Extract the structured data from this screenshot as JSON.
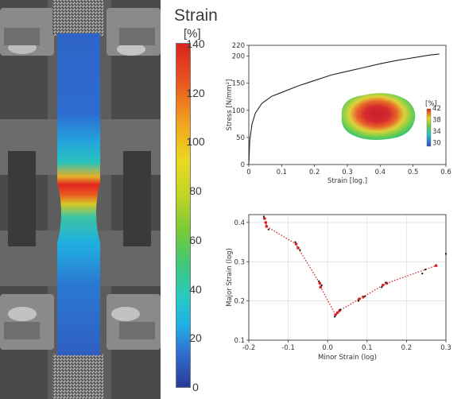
{
  "colorbar": {
    "title": "Strain",
    "unit": "[%]",
    "ticks": [
      "140",
      "120",
      "100",
      "80",
      "60",
      "40",
      "20",
      "0"
    ],
    "min": 0,
    "max": 140
  },
  "chart_data": [
    {
      "type": "line",
      "xlabel": "Strain [log.]",
      "ylabel": "Stress [N/mm²]",
      "xlim": [
        0,
        0.6
      ],
      "ylim": [
        0,
        220
      ],
      "xticks": [
        "0",
        "0.1",
        "0.2",
        "0.3",
        "0.4",
        "0.5",
        "0.6"
      ],
      "yticks": [
        "0",
        "50",
        "100",
        "150",
        "200",
        "220"
      ],
      "grid": false,
      "series": [
        {
          "color": "#222222",
          "x": [
            0,
            0.003,
            0.01,
            0.02,
            0.04,
            0.07,
            0.1,
            0.15,
            0.2,
            0.25,
            0.3,
            0.35,
            0.4,
            0.45,
            0.5,
            0.55,
            0.58
          ],
          "y": [
            0,
            45,
            75,
            95,
            113,
            126,
            133,
            145,
            155,
            165,
            172,
            179,
            186,
            192,
            197,
            202,
            204
          ]
        }
      ],
      "inset": {
        "description_colorbar_unit": "[%]",
        "colorbar_ticks": [
          "42",
          "38",
          "34",
          "30"
        ]
      }
    },
    {
      "type": "scatter",
      "xlabel": "Minor Strain (log)",
      "ylabel": "Major Strain (log)",
      "xlim": [
        -0.2,
        0.3
      ],
      "ylim": [
        0.1,
        0.42
      ],
      "xticks": [
        "-0.2",
        "-0.1",
        "0.0",
        "0.1",
        "0.2",
        "0.3"
      ],
      "yticks": [
        "0.1",
        "0.2",
        "0.3",
        "0.4"
      ],
      "grid": true,
      "series": [
        {
          "color": "#d62020",
          "style": "dotted",
          "x": [
            -0.16,
            -0.157,
            -0.155,
            -0.08,
            -0.075,
            -0.02,
            -0.018,
            0.02,
            0.025,
            0.03,
            0.08,
            0.09,
            0.14,
            0.15,
            0.275
          ],
          "y": [
            0.41,
            0.4,
            0.39,
            0.345,
            0.335,
            0.245,
            0.235,
            0.165,
            0.17,
            0.175,
            0.205,
            0.21,
            0.24,
            0.245,
            0.29
          ]
        },
        {
          "color": "#111111",
          "x": [
            -0.162,
            -0.15,
            -0.082,
            -0.07,
            -0.022,
            -0.015,
            0.018,
            0.032,
            0.078,
            0.095,
            0.137,
            0.147,
            0.24,
            0.248,
            0.3
          ],
          "y": [
            0.415,
            0.382,
            0.35,
            0.33,
            0.25,
            0.24,
            0.16,
            0.178,
            0.2,
            0.212,
            0.235,
            0.247,
            0.27,
            0.28,
            0.32
          ]
        }
      ]
    }
  ]
}
